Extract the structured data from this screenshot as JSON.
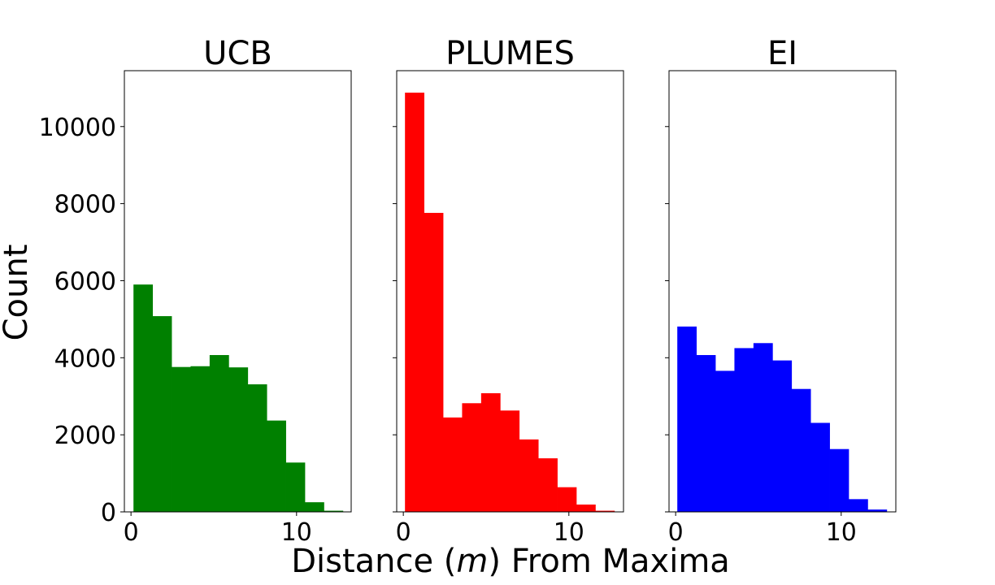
{
  "figure": {
    "ylabel": "Count",
    "xlabel_pre": "Distance (",
    "xlabel_var": "m",
    "xlabel_post": ") From Maxima"
  },
  "chart_data": [
    {
      "type": "bar",
      "title": "UCB",
      "color": "#008000",
      "bin_edges": [
        0.15,
        1.3,
        2.45,
        3.6,
        4.75,
        5.9,
        7.05,
        8.2,
        9.35,
        10.5,
        11.65,
        12.8
      ],
      "values": [
        5900,
        5080,
        3760,
        3780,
        4070,
        3750,
        3310,
        2370,
        1280,
        250,
        30
      ],
      "xlim": [
        -0.4,
        13.3
      ],
      "ylim": [
        0,
        11450
      ],
      "xticks": [
        0,
        10
      ],
      "yticks": [
        0,
        2000,
        4000,
        6000,
        8000,
        10000
      ],
      "show_yticklabels": true
    },
    {
      "type": "bar",
      "title": "PLUMES",
      "color": "#ff0000",
      "bin_edges": [
        0.1,
        1.25,
        2.4,
        3.55,
        4.7,
        5.85,
        7.0,
        8.15,
        9.3,
        10.45,
        11.6,
        12.75
      ],
      "values": [
        10880,
        7760,
        2450,
        2820,
        3080,
        2630,
        1880,
        1390,
        640,
        190,
        30
      ],
      "xlim": [
        -0.4,
        13.3
      ],
      "ylim": [
        0,
        11450
      ],
      "xticks": [
        0,
        10
      ],
      "yticks": [
        0,
        2000,
        4000,
        6000,
        8000,
        10000
      ],
      "show_yticklabels": false
    },
    {
      "type": "bar",
      "title": "EI",
      "color": "#0000ff",
      "bin_edges": [
        0.1,
        1.25,
        2.4,
        3.55,
        4.7,
        5.85,
        7.0,
        8.15,
        9.3,
        10.45,
        11.6,
        12.75
      ],
      "values": [
        4810,
        4070,
        3660,
        4250,
        4380,
        3930,
        3190,
        2310,
        1630,
        330,
        60
      ],
      "xlim": [
        -0.4,
        13.3
      ],
      "ylim": [
        0,
        11450
      ],
      "xticks": [
        0,
        10
      ],
      "yticks": [
        0,
        2000,
        4000,
        6000,
        8000,
        10000
      ],
      "show_yticklabels": false
    }
  ]
}
